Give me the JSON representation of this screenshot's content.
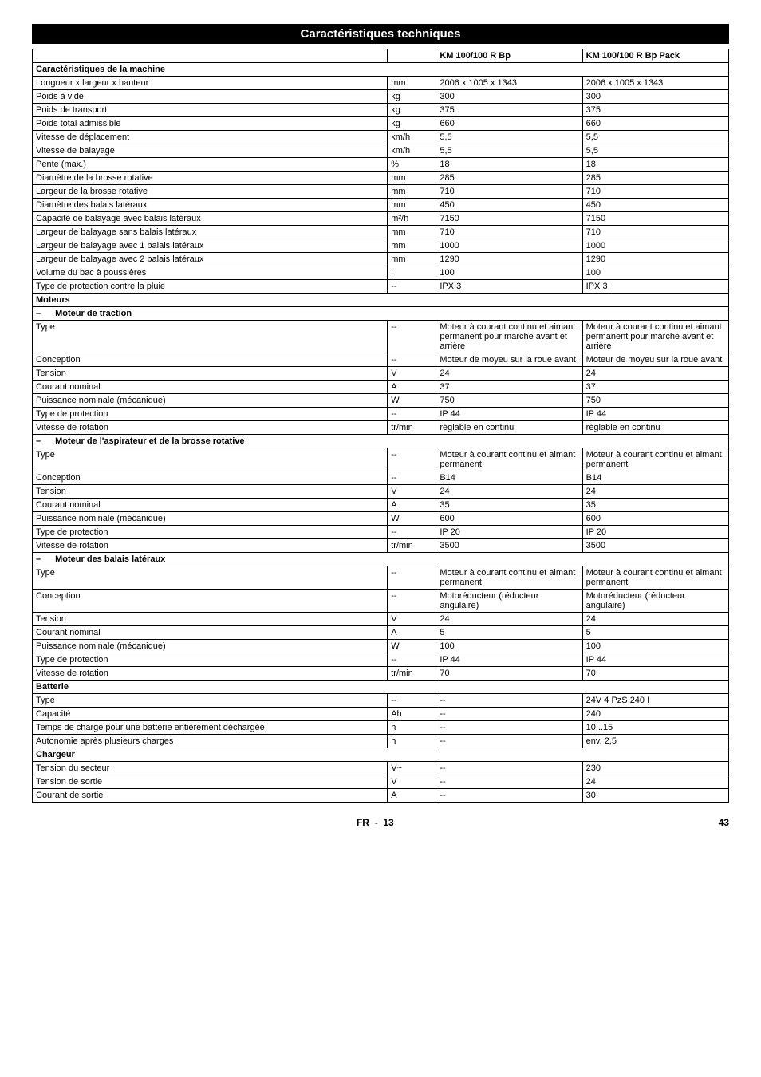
{
  "title": "Caractéristiques techniques",
  "columns": {
    "model1": "KM 100/100 R Bp",
    "model2": "KM 100/100 R Bp Pack"
  },
  "sections": [
    {
      "type": "section",
      "label": "Caractéristiques de la machine"
    },
    {
      "label": "Longueur x largeur x hauteur",
      "unit": "mm",
      "v1": "2006 x 1005 x 1343",
      "v2": "2006 x 1005 x 1343"
    },
    {
      "label": "Poids à vide",
      "unit": "kg",
      "v1": "300",
      "v2": "300"
    },
    {
      "label": "Poids de transport",
      "unit": "kg",
      "v1": "375",
      "v2": "375"
    },
    {
      "label": "Poids total admissible",
      "unit": "kg",
      "v1": "660",
      "v2": "660"
    },
    {
      "label": "Vitesse de déplacement",
      "unit": "km/h",
      "v1": "5,5",
      "v2": "5,5"
    },
    {
      "label": "Vitesse de balayage",
      "unit": "km/h",
      "v1": "5,5",
      "v2": "5,5"
    },
    {
      "label": "Pente (max.)",
      "unit": "%",
      "v1": "18",
      "v2": "18"
    },
    {
      "label": "Diamètre de la brosse rotative",
      "unit": "mm",
      "v1": "285",
      "v2": "285"
    },
    {
      "label": "Largeur de la brosse rotative",
      "unit": "mm",
      "v1": "710",
      "v2": "710"
    },
    {
      "label": "Diamètre des balais latéraux",
      "unit": "mm",
      "v1": "450",
      "v2": "450"
    },
    {
      "label": "Capacité de balayage avec balais latéraux",
      "unit": "m²/h",
      "v1": "7150",
      "v2": "7150"
    },
    {
      "label": "Largeur de balayage sans balais latéraux",
      "unit": "mm",
      "v1": "710",
      "v2": "710"
    },
    {
      "label": "Largeur de balayage avec 1 balais latéraux",
      "unit": "mm",
      "v1": "1000",
      "v2": "1000"
    },
    {
      "label": "Largeur de balayage avec 2 balais latéraux",
      "unit": "mm",
      "v1": "1290",
      "v2": "1290"
    },
    {
      "label": "Volume du bac à poussières",
      "unit": "l",
      "v1": "100",
      "v2": "100"
    },
    {
      "label": "Type de protection contre la pluie",
      "unit": "--",
      "v1": "IPX 3",
      "v2": "IPX 3"
    },
    {
      "type": "section",
      "label": "Moteurs"
    },
    {
      "type": "sub",
      "label": "Moteur de traction",
      "dash": "–"
    },
    {
      "label": "Type",
      "unit": "--",
      "v1": "Moteur à courant continu et aimant permanent pour marche avant et arrière",
      "v2": "Moteur à courant continu et aimant permanent pour marche avant et arrière"
    },
    {
      "label": "Conception",
      "unit": "--",
      "v1": "Moteur de moyeu sur la roue avant",
      "v2": "Moteur de moyeu sur la roue avant"
    },
    {
      "label": "Tension",
      "unit": "V",
      "v1": "24",
      "v2": "24"
    },
    {
      "label": "Courant nominal",
      "unit": "A",
      "v1": "37",
      "v2": "37"
    },
    {
      "label": "Puissance nominale (mécanique)",
      "unit": "W",
      "v1": "750",
      "v2": "750"
    },
    {
      "label": "Type de protection",
      "unit": "--",
      "v1": "IP 44",
      "v2": "IP 44"
    },
    {
      "label": "Vitesse de rotation",
      "unit": "tr/min",
      "v1": "réglable en continu",
      "v2": "réglable en continu"
    },
    {
      "type": "sub",
      "label": "Moteur de l'aspirateur et de la brosse rotative",
      "dash": "–"
    },
    {
      "label": "Type",
      "unit": "--",
      "v1": "Moteur à courant continu et aimant permanent",
      "v2": "Moteur à courant continu et aimant permanent"
    },
    {
      "label": "Conception",
      "unit": "--",
      "v1": "B14",
      "v2": "B14"
    },
    {
      "label": "Tension",
      "unit": "V",
      "v1": "24",
      "v2": "24"
    },
    {
      "label": "Courant nominal",
      "unit": "A",
      "v1": "35",
      "v2": "35"
    },
    {
      "label": "Puissance nominale (mécanique)",
      "unit": "W",
      "v1": "600",
      "v2": "600"
    },
    {
      "label": "Type de protection",
      "unit": "--",
      "v1": "IP 20",
      "v2": "IP 20"
    },
    {
      "label": "Vitesse de rotation",
      "unit": "tr/min",
      "v1": "3500",
      "v2": "3500"
    },
    {
      "type": "sub",
      "label": "Moteur des balais latéraux",
      "dash": "–"
    },
    {
      "label": "Type",
      "unit": "--",
      "v1": "Moteur à courant continu et aimant permanent",
      "v2": "Moteur à courant continu et aimant permanent"
    },
    {
      "label": "Conception",
      "unit": "--",
      "v1": "Motoréducteur (réducteur angulaire)",
      "v2": "Motoréducteur (réducteur angulaire)"
    },
    {
      "label": "Tension",
      "unit": "V",
      "v1": "24",
      "v2": "24"
    },
    {
      "label": "Courant nominal",
      "unit": "A",
      "v1": "5",
      "v2": "5"
    },
    {
      "label": "Puissance nominale (mécanique)",
      "unit": "W",
      "v1": "100",
      "v2": "100"
    },
    {
      "label": "Type de protection",
      "unit": "--",
      "v1": "IP 44",
      "v2": "IP 44"
    },
    {
      "label": "Vitesse de rotation",
      "unit": "tr/min",
      "v1": "70",
      "v2": "70"
    },
    {
      "type": "section",
      "label": "Batterie"
    },
    {
      "label": "Type",
      "unit": "--",
      "v1": "--",
      "v2": "24V 4 PzS 240 I"
    },
    {
      "label": "Capacité",
      "unit": "Ah",
      "v1": "--",
      "v2": "240"
    },
    {
      "label": "Temps de charge pour une batterie entièrement déchargée",
      "unit": "h",
      "v1": "--",
      "v2": "10...15"
    },
    {
      "label": "Autonomie après plusieurs charges",
      "unit": "h",
      "v1": "--",
      "v2": "env. 2,5"
    },
    {
      "type": "section",
      "label": "Chargeur"
    },
    {
      "label": "Tension du secteur",
      "unit": "V~",
      "v1": "--",
      "v2": "230"
    },
    {
      "label": "Tension de sortie",
      "unit": "V",
      "v1": "--",
      "v2": "24"
    },
    {
      "label": "Courant de sortie",
      "unit": "A",
      "v1": "--",
      "v2": "30"
    }
  ],
  "footer": {
    "lang": "FR",
    "sep": "-",
    "subpage": "13",
    "page": "43"
  }
}
